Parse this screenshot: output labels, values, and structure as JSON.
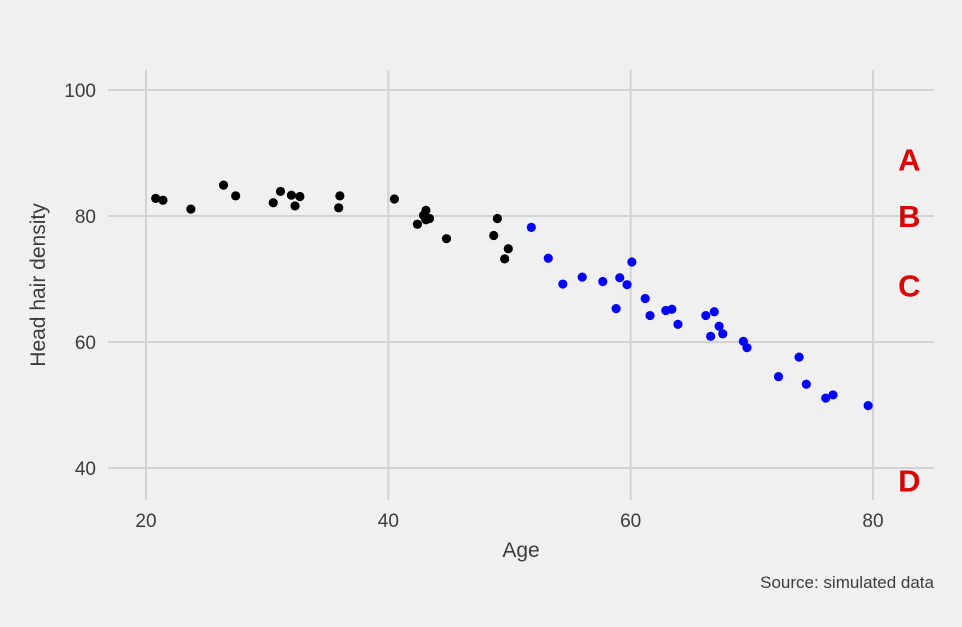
{
  "chart_data": {
    "type": "scatter",
    "title": "",
    "xlabel": "Age",
    "ylabel": "Head hair density",
    "caption": "Source: simulated data",
    "xlim": [
      18,
      85
    ],
    "ylim": [
      35,
      103
    ],
    "x_ticks": [
      20,
      40,
      60,
      80
    ],
    "y_ticks": [
      40,
      60,
      80,
      100
    ],
    "grid": true,
    "legend": "none",
    "series": [
      {
        "color": "#000000",
        "points": [
          [
            20.8,
            82.8
          ],
          [
            21.4,
            82.5
          ],
          [
            23.7,
            81.1
          ],
          [
            26.4,
            84.9
          ],
          [
            27.4,
            83.2
          ],
          [
            30.5,
            82.1
          ],
          [
            31.1,
            83.9
          ],
          [
            32.0,
            83.3
          ],
          [
            32.3,
            81.6
          ],
          [
            32.7,
            83.1
          ],
          [
            35.9,
            81.3
          ],
          [
            36.0,
            83.2
          ],
          [
            40.5,
            82.7
          ],
          [
            42.4,
            78.7
          ],
          [
            42.9,
            80.1
          ],
          [
            43.1,
            80.9
          ],
          [
            43.1,
            79.4
          ],
          [
            43.4,
            79.6
          ],
          [
            44.8,
            76.4
          ],
          [
            48.7,
            76.9
          ],
          [
            49.0,
            79.6
          ],
          [
            49.6,
            73.2
          ],
          [
            49.9,
            74.8
          ]
        ]
      },
      {
        "color": "#0000ff",
        "points": [
          [
            51.8,
            78.2
          ],
          [
            53.2,
            73.3
          ],
          [
            54.4,
            69.2
          ],
          [
            56.0,
            70.3
          ],
          [
            57.7,
            69.6
          ],
          [
            58.8,
            65.3
          ],
          [
            59.1,
            70.2
          ],
          [
            59.7,
            69.1
          ],
          [
            60.1,
            72.7
          ],
          [
            61.2,
            66.9
          ],
          [
            61.6,
            64.2
          ],
          [
            62.9,
            65.0
          ],
          [
            63.4,
            65.2
          ],
          [
            63.9,
            62.8
          ],
          [
            66.2,
            64.2
          ],
          [
            66.6,
            60.9
          ],
          [
            66.9,
            64.8
          ],
          [
            67.3,
            62.5
          ],
          [
            67.6,
            61.3
          ],
          [
            69.3,
            60.1
          ],
          [
            69.6,
            59.1
          ],
          [
            72.2,
            54.5
          ],
          [
            73.9,
            57.6
          ],
          [
            74.5,
            53.3
          ],
          [
            76.1,
            51.1
          ],
          [
            76.7,
            51.6
          ],
          [
            79.6,
            49.9
          ]
        ]
      }
    ],
    "annotations": [
      {
        "text": "A",
        "x": 83,
        "y": 89,
        "color": "#dd0000"
      },
      {
        "text": "B",
        "x": 83,
        "y": 80,
        "color": "#dd0000"
      },
      {
        "text": "C",
        "x": 83,
        "y": 69,
        "color": "#dd0000"
      },
      {
        "text": "D",
        "x": 83,
        "y": 38,
        "color": "#dd0000"
      }
    ]
  },
  "colors": {
    "background": "#f0f0f0",
    "grid": "#d2d2d2",
    "text": "#3c3c3c"
  }
}
